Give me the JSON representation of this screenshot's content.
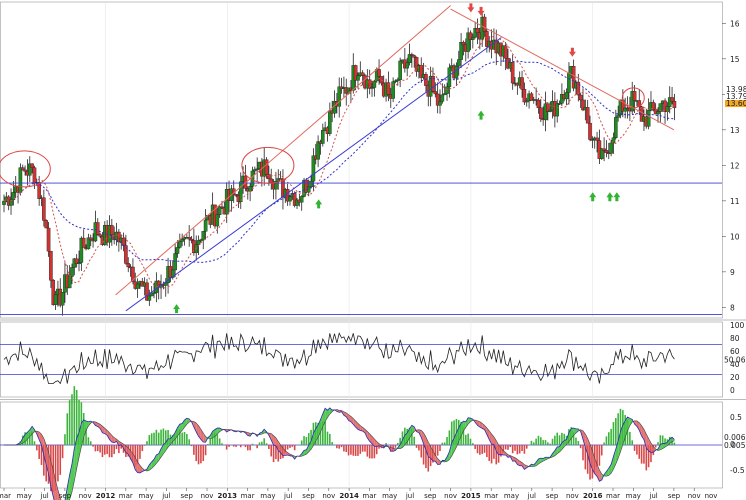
{
  "chart_data": [
    {
      "panel": "price",
      "type": "candlestick",
      "x_ticks": [
        "mar",
        "may",
        "jul",
        "sep",
        "nov",
        "2012",
        "mar",
        "may",
        "jul",
        "sep",
        "nov",
        "2013",
        "mar",
        "may",
        "jul",
        "sep",
        "nov",
        "2014",
        "mar",
        "may",
        "jul",
        "sep",
        "nov",
        "2015",
        "mar",
        "may",
        "jul",
        "sep",
        "nov",
        "2016",
        "mar",
        "may",
        "jul",
        "sep",
        "nov"
      ],
      "year_ticks": [
        "2012",
        "2013",
        "2014",
        "2015",
        "2016"
      ],
      "y_ticks": [
        16,
        15,
        14,
        13,
        12,
        11,
        10,
        9,
        8
      ],
      "ylim": [
        7.7,
        16.6
      ],
      "price_labels": [
        "13.98",
        "13.79",
        "13.600"
      ],
      "approx_close_path": [
        [
          "2011-03",
          11.0
        ],
        [
          "2011-04",
          11.3
        ],
        [
          "2011-05",
          11.9
        ],
        [
          "2011-06",
          11.8
        ],
        [
          "2011-07",
          10.6
        ],
        [
          "2011-08",
          8.0
        ],
        [
          "2011-09",
          8.6
        ],
        [
          "2011-10",
          9.3
        ],
        [
          "2011-11",
          9.8
        ],
        [
          "2011-12",
          10.2
        ],
        [
          "2012-01",
          10.0
        ],
        [
          "2012-02",
          10.1
        ],
        [
          "2012-03",
          9.5
        ],
        [
          "2012-04",
          8.8
        ],
        [
          "2012-05",
          8.3
        ],
        [
          "2012-06",
          8.5
        ],
        [
          "2012-07",
          8.9
        ],
        [
          "2012-08",
          9.4
        ],
        [
          "2012-09",
          9.8
        ],
        [
          "2012-10",
          9.9
        ],
        [
          "2012-11",
          10.4
        ],
        [
          "2012-12",
          10.7
        ],
        [
          "2013-01",
          11.0
        ],
        [
          "2013-02",
          11.2
        ],
        [
          "2013-03",
          11.6
        ],
        [
          "2013-04",
          11.8
        ],
        [
          "2013-05",
          12.0
        ],
        [
          "2013-06",
          11.4
        ],
        [
          "2013-07",
          11.3
        ],
        [
          "2013-08",
          11.1
        ],
        [
          "2013-09",
          11.6
        ],
        [
          "2013-10",
          12.8
        ],
        [
          "2013-11",
          13.3
        ],
        [
          "2013-12",
          13.9
        ],
        [
          "2014-01",
          14.3
        ],
        [
          "2014-02",
          14.9
        ],
        [
          "2014-03",
          14.2
        ],
        [
          "2014-04",
          14.5
        ],
        [
          "2014-05",
          13.8
        ],
        [
          "2014-06",
          14.6
        ],
        [
          "2014-07",
          15.0
        ],
        [
          "2014-08",
          14.4
        ],
        [
          "2014-09",
          14.2
        ],
        [
          "2014-10",
          13.6
        ],
        [
          "2014-11",
          14.6
        ],
        [
          "2014-12",
          15.1
        ],
        [
          "2015-01",
          15.8
        ],
        [
          "2015-02",
          15.9
        ],
        [
          "2015-03",
          15.5
        ],
        [
          "2015-04",
          15.2
        ],
        [
          "2015-05",
          14.6
        ],
        [
          "2015-06",
          14.1
        ],
        [
          "2015-07",
          14.0
        ],
        [
          "2015-08",
          13.6
        ],
        [
          "2015-09",
          13.5
        ],
        [
          "2015-10",
          14.1
        ],
        [
          "2015-11",
          14.6
        ],
        [
          "2015-12",
          13.8
        ],
        [
          "2016-01",
          12.6
        ],
        [
          "2016-02",
          12.1
        ],
        [
          "2016-03",
          13.0
        ],
        [
          "2016-04",
          13.7
        ],
        [
          "2016-05",
          13.8
        ],
        [
          "2016-06",
          13.3
        ],
        [
          "2016-07",
          13.5
        ],
        [
          "2016-08",
          13.8
        ],
        [
          "2016-09",
          13.6
        ]
      ],
      "horizontal_lines": [
        11.5,
        7.8
      ],
      "colors": {
        "up": "#1e8c1e",
        "down": "#d23232",
        "trend_red": "#e06a60",
        "trend_blue": "#3b3bd4",
        "ma_blue": "#3030cc",
        "ma_red": "#d45050",
        "arrow_up": "#32b432",
        "arrow_down": "#e04848"
      }
    },
    {
      "panel": "rsi",
      "type": "line",
      "y_ticks": [
        "100",
        "80",
        "60",
        "40",
        "20",
        "0"
      ],
      "levels": [
        70,
        30
      ],
      "last_value_label": "50.069"
    },
    {
      "panel": "macd",
      "type": "area",
      "y_ticks": [
        "0.5",
        "0",
        "-0.5"
      ],
      "value_labels": [
        "0.0069",
        "0.0058"
      ],
      "colors": {
        "up": "#54c954",
        "down": "#e57373",
        "hist_up": "#3cb43c",
        "hist_down": "#d84848"
      }
    }
  ]
}
